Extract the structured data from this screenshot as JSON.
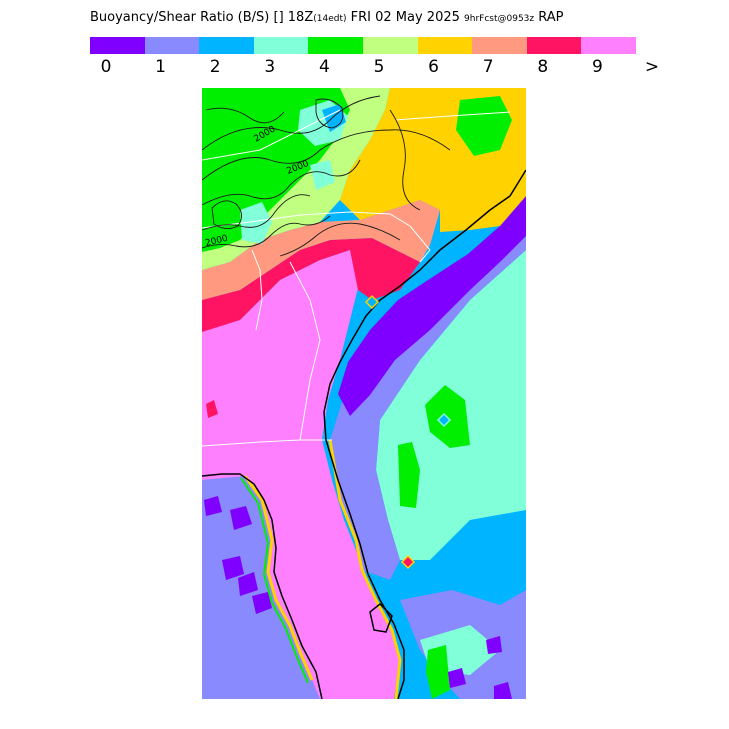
{
  "title": {
    "parts": [
      {
        "text": "Buoyancy/Shear Ratio (B/S)  [] 18Z",
        "small": false
      },
      {
        "text": "(14edt)",
        "small": true
      },
      {
        "text": " FRI 02 May 2025 ",
        "small": false
      },
      {
        "text": "9hrFcst@0953z",
        "small": true
      },
      {
        "text": " RAP",
        "small": false
      }
    ]
  },
  "legend": {
    "bins": [
      {
        "color": "#8000ff"
      },
      {
        "color": "#8a8aff"
      },
      {
        "color": "#00b4ff"
      },
      {
        "color": "#80ffd9"
      },
      {
        "color": "#00ee00"
      },
      {
        "color": "#c0ff80"
      },
      {
        "color": "#ffd200"
      },
      {
        "color": "#ff9a80"
      },
      {
        "color": "#ff1464"
      },
      {
        "color": "#ff80ff"
      }
    ],
    "labels": [
      "0",
      "1",
      "2",
      "3",
      "4",
      "5",
      "6",
      "7",
      "8",
      "9",
      ">"
    ]
  },
  "contour_labels": [
    "2000",
    "2000",
    "2000"
  ]
}
